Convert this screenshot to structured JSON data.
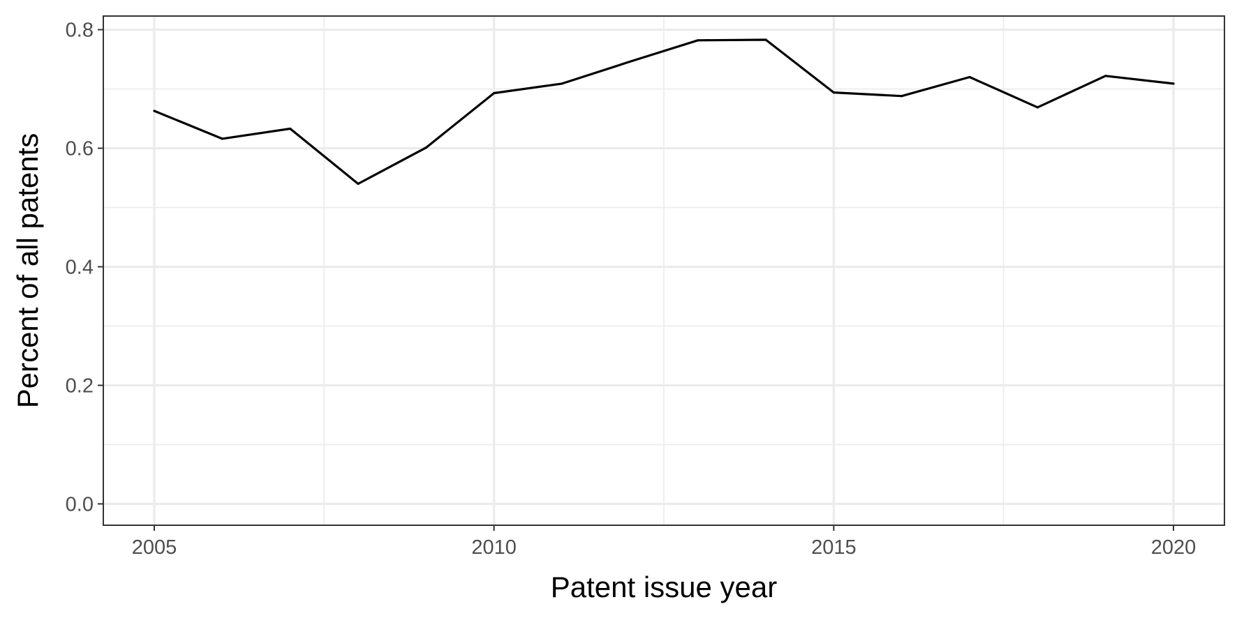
{
  "chart_data": {
    "type": "line",
    "title": "",
    "xlabel": "Patent issue year",
    "ylabel": "Percent of all patents",
    "xlim": [
      2004.25,
      2020.75
    ],
    "ylim": [
      -0.036,
      0.823
    ],
    "x_ticks": [
      2005,
      2010,
      2015,
      2020
    ],
    "x_tick_labels": [
      "2005",
      "2010",
      "2015",
      "2020"
    ],
    "x_minor_ticks": [
      2007.5,
      2012.5,
      2017.5
    ],
    "y_ticks": [
      0.0,
      0.2,
      0.4,
      0.6,
      0.8
    ],
    "y_tick_labels": [
      "0.0",
      "0.2",
      "0.4",
      "0.6",
      "0.8"
    ],
    "y_minor_ticks": [
      0.1,
      0.3,
      0.5,
      0.7
    ],
    "grid": true,
    "legend": "none",
    "series": [
      {
        "color": "#000000",
        "x": [
          2005,
          2006,
          2007,
          2008,
          2009,
          2010,
          2011,
          2012,
          2013,
          2014,
          2015,
          2016,
          2017,
          2018,
          2019,
          2020
        ],
        "y": [
          0.663,
          0.616,
          0.633,
          0.54,
          0.601,
          0.693,
          0.709,
          0.746,
          0.782,
          0.783,
          0.694,
          0.688,
          0.72,
          0.669,
          0.722,
          0.709
        ]
      }
    ]
  }
}
